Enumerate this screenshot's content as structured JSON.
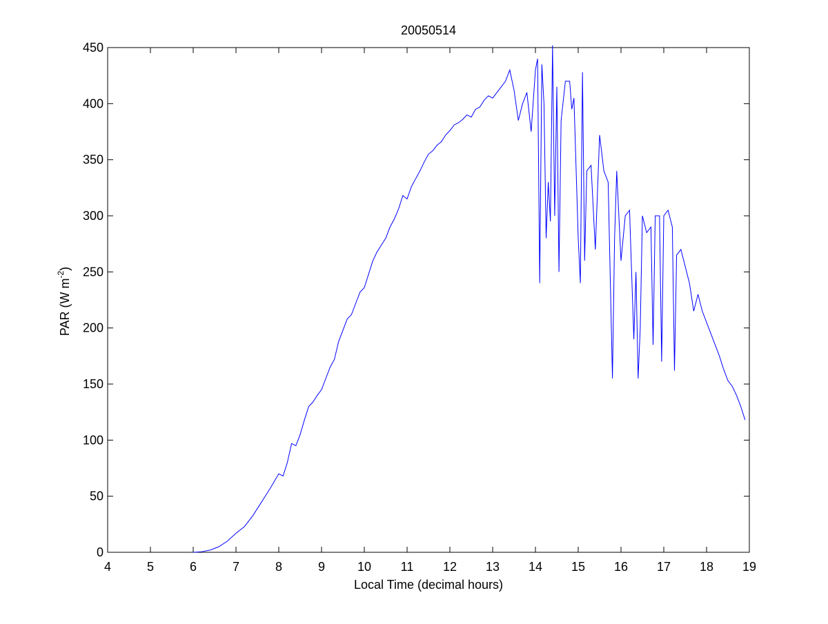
{
  "chart_data": {
    "type": "line",
    "title": "20050514",
    "xlabel": "Local Time (decimal hours)",
    "ylabel_parts": [
      "PAR (W m",
      "-2",
      ")"
    ],
    "x": [
      6.0,
      6.2,
      6.4,
      6.6,
      6.8,
      7.0,
      7.2,
      7.4,
      7.6,
      7.8,
      8.0,
      8.1,
      8.2,
      8.3,
      8.4,
      8.5,
      8.6,
      8.7,
      8.8,
      8.9,
      9.0,
      9.1,
      9.2,
      9.3,
      9.4,
      9.5,
      9.6,
      9.7,
      9.8,
      9.9,
      10.0,
      10.1,
      10.2,
      10.3,
      10.4,
      10.5,
      10.6,
      10.7,
      10.8,
      10.9,
      11.0,
      11.1,
      11.2,
      11.3,
      11.4,
      11.5,
      11.6,
      11.7,
      11.8,
      11.9,
      12.0,
      12.1,
      12.2,
      12.3,
      12.4,
      12.5,
      12.6,
      12.7,
      12.8,
      12.9,
      13.0,
      13.1,
      13.2,
      13.3,
      13.4,
      13.5,
      13.6,
      13.7,
      13.8,
      13.9,
      14.0,
      14.05,
      14.1,
      14.15,
      14.2,
      14.25,
      14.3,
      14.35,
      14.4,
      14.45,
      14.5,
      14.55,
      14.6,
      14.7,
      14.8,
      14.85,
      14.9,
      15.0,
      15.05,
      15.1,
      15.15,
      15.2,
      15.3,
      15.4,
      15.5,
      15.6,
      15.7,
      15.8,
      15.85,
      15.9,
      16.0,
      16.1,
      16.2,
      16.3,
      16.35,
      16.4,
      16.45,
      16.5,
      16.6,
      16.7,
      16.75,
      16.8,
      16.9,
      16.95,
      17.0,
      17.1,
      17.2,
      17.25,
      17.3,
      17.4,
      17.5,
      17.6,
      17.7,
      17.8,
      17.9,
      18.0,
      18.1,
      18.2,
      18.3,
      18.4,
      18.5,
      18.6,
      18.7,
      18.8,
      18.9
    ],
    "series": [
      {
        "color": "#0000ff",
        "values": [
          0,
          0.5,
          2,
          5,
          10,
          17,
          23,
          33,
          45,
          57,
          70,
          68,
          80,
          97,
          95,
          105,
          118,
          130,
          134,
          140,
          145,
          155,
          165,
          172,
          188,
          198,
          208,
          212,
          222,
          232,
          236,
          248,
          260,
          268,
          274,
          280,
          290,
          297,
          306,
          318,
          315,
          326,
          333,
          340,
          348,
          355,
          358,
          363,
          366,
          372,
          376,
          381,
          383,
          386,
          390,
          388,
          395,
          397,
          403,
          407,
          405,
          410,
          415,
          420,
          430,
          412,
          385,
          400,
          410,
          375,
          430,
          440,
          240,
          435,
          400,
          280,
          330,
          295,
          452,
          300,
          415,
          250,
          385,
          420,
          420,
          395,
          405,
          280,
          240,
          428,
          260,
          340,
          345,
          270,
          372,
          340,
          330,
          155,
          280,
          340,
          260,
          300,
          305,
          190,
          250,
          155,
          200,
          300,
          285,
          290,
          185,
          300,
          300,
          170,
          300,
          305,
          290,
          162,
          265,
          270,
          255,
          240,
          215,
          230,
          215,
          205,
          195,
          185,
          175,
          163,
          153,
          148,
          140,
          130,
          118
        ]
      }
    ],
    "xlim": [
      4,
      19
    ],
    "xticks": [
      4,
      5,
      6,
      7,
      8,
      9,
      10,
      11,
      12,
      13,
      14,
      15,
      16,
      17,
      18,
      19
    ],
    "ylim": [
      0,
      450
    ],
    "yticks": [
      0,
      50,
      100,
      150,
      200,
      250,
      300,
      350,
      400,
      450
    ]
  }
}
